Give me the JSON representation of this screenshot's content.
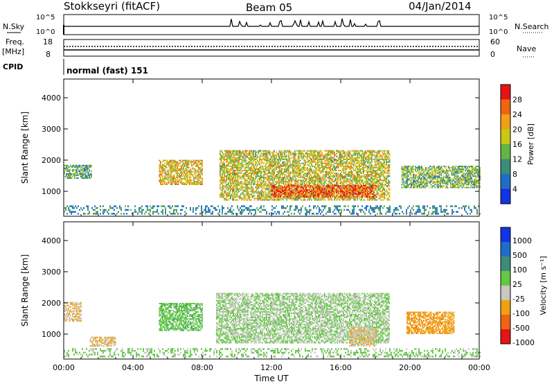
{
  "header": {
    "station": "Stokkseyri (fitACF)",
    "beam": "Beam 05",
    "date": "04/Jan/2014"
  },
  "noise_panel": {
    "left_label": "N.Sky",
    "right_label": "N.Search",
    "left_ticks": [
      "10^5",
      "10^0"
    ],
    "right_ticks": [
      "10^5",
      "10^0"
    ]
  },
  "freq_panel": {
    "left_label_top": "Freq.",
    "left_label_unit": "[MHz]",
    "left_ticks": [
      "18",
      "8"
    ],
    "right_ticks": [
      "60",
      "0"
    ],
    "right_label": "Nave"
  },
  "cpid_panel": {
    "label": "CPID",
    "value": "normal (fast) 151"
  },
  "colors": {
    "power_scale": [
      "#1432e6",
      "#1e6ec8",
      "#3c8c78",
      "#64b446",
      "#c8c814",
      "#f0a014",
      "#f06414",
      "#e61414"
    ],
    "velocity_scale": [
      "#1432e6",
      "#1e6ec8",
      "#3c8c78",
      "#64c846",
      "#c8c8c0",
      "#f0a014",
      "#f06414",
      "#e61414"
    ]
  },
  "chart_data": [
    {
      "type": "heatmap",
      "panel": "power",
      "ylabel": "Slant Range [km]",
      "yticks": [
        1000,
        2000,
        3000,
        4000
      ],
      "ylim": [
        200,
        4600
      ],
      "xlim": [
        0,
        24
      ],
      "xticks": [
        0,
        4,
        8,
        12,
        16,
        20,
        24
      ],
      "colorbar": {
        "label": "Power [dB]",
        "ticks": [
          "4",
          "8",
          "12",
          "16",
          "20",
          "24",
          "28"
        ],
        "range": [
          0,
          32
        ]
      },
      "regions": [
        {
          "t": [
            0.0,
            1.6
          ],
          "r": [
            1400,
            1850
          ],
          "v": 12
        },
        {
          "t": [
            5.5,
            8.0
          ],
          "r": [
            1200,
            2000
          ],
          "v": 20
        },
        {
          "t": [
            9.0,
            18.8
          ],
          "r": [
            700,
            2300
          ],
          "v": 18
        },
        {
          "t": [
            12.0,
            18.0
          ],
          "r": [
            800,
            1200
          ],
          "v": 27
        },
        {
          "t": [
            19.5,
            24.0
          ],
          "r": [
            1100,
            1800
          ],
          "v": 14
        }
      ]
    },
    {
      "type": "heatmap",
      "panel": "velocity",
      "ylabel": "Slant Range [km]",
      "xlabel": "Time UT",
      "yticks": [
        1000,
        2000,
        3000,
        4000
      ],
      "ylim": [
        200,
        4600
      ],
      "xlim": [
        0,
        24
      ],
      "xticks": [
        0,
        4,
        8,
        12,
        16,
        20,
        24
      ],
      "xticklabels": [
        "00:00",
        "04:00",
        "08:00",
        "12:00",
        "16:00",
        "20:00",
        "00:00"
      ],
      "colorbar": {
        "label": "Velocity [m s⁻¹]",
        "ticks": [
          "1000",
          "500",
          "100",
          "25",
          "-25",
          "-100",
          "-500",
          "-1000"
        ],
        "range": [
          -1250,
          1250
        ]
      },
      "regions": [
        {
          "t": [
            0.0,
            1.0
          ],
          "r": [
            1400,
            2000
          ],
          "v": -300
        },
        {
          "t": [
            1.5,
            3.0
          ],
          "r": [
            600,
            900
          ],
          "v": -300
        },
        {
          "t": [
            5.5,
            8.0
          ],
          "r": [
            1100,
            2000
          ],
          "v": 200
        },
        {
          "t": [
            8.8,
            18.8
          ],
          "r": [
            700,
            2300
          ],
          "v": 0
        },
        {
          "t": [
            16.5,
            18.0
          ],
          "r": [
            600,
            1200
          ],
          "v": -300
        },
        {
          "t": [
            19.8,
            22.5
          ],
          "r": [
            1000,
            1700
          ],
          "v": -500
        }
      ]
    }
  ]
}
